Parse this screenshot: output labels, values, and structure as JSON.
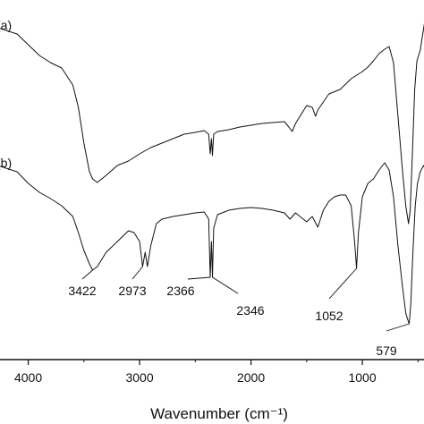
{
  "chart_data": {
    "type": "line",
    "xlabel": "Wavenumber (cm⁻¹)",
    "ylabel": "",
    "xlim": [
      4350,
      350
    ],
    "x_reversed": true,
    "x_ticks": [
      4000,
      3000,
      2000,
      1000
    ],
    "y_axis_visible": false,
    "grid": false,
    "series": [
      {
        "name": "(a)",
        "points": [
          [
            4350,
            8
          ],
          [
            4100,
            18
          ],
          [
            4000,
            30
          ],
          [
            3900,
            42
          ],
          [
            3800,
            50
          ],
          [
            3700,
            56
          ],
          [
            3600,
            75
          ],
          [
            3550,
            100
          ],
          [
            3500,
            140
          ],
          [
            3450,
            172
          ],
          [
            3422,
            180
          ],
          [
            3380,
            184
          ],
          [
            3300,
            176
          ],
          [
            3200,
            165
          ],
          [
            3100,
            160
          ],
          [
            3000,
            152
          ],
          [
            2900,
            145
          ],
          [
            2800,
            140
          ],
          [
            2700,
            135
          ],
          [
            2600,
            130
          ],
          [
            2500,
            128
          ],
          [
            2420,
            126
          ],
          [
            2380,
            130
          ],
          [
            2366,
            152
          ],
          [
            2355,
            135
          ],
          [
            2346,
            154
          ],
          [
            2335,
            130
          ],
          [
            2300,
            127
          ],
          [
            2200,
            125
          ],
          [
            2100,
            122
          ],
          [
            2000,
            120
          ],
          [
            1900,
            118
          ],
          [
            1800,
            117
          ],
          [
            1700,
            116
          ],
          [
            1660,
            122
          ],
          [
            1630,
            127
          ],
          [
            1600,
            118
          ],
          [
            1500,
            98
          ],
          [
            1450,
            100
          ],
          [
            1420,
            110
          ],
          [
            1400,
            103
          ],
          [
            1300,
            85
          ],
          [
            1200,
            80
          ],
          [
            1100,
            68
          ],
          [
            1000,
            60
          ],
          [
            950,
            55
          ],
          [
            900,
            48
          ],
          [
            850,
            40
          ],
          [
            800,
            35
          ],
          [
            760,
            32
          ],
          [
            720,
            50
          ],
          [
            680,
            110
          ],
          [
            640,
            170
          ],
          [
            610,
            210
          ],
          [
            585,
            230
          ],
          [
            570,
            215
          ],
          [
            550,
            150
          ],
          [
            530,
            80
          ],
          [
            510,
            48
          ],
          [
            480,
            36
          ],
          [
            460,
            20
          ],
          [
            440,
            4
          ]
        ]
      },
      {
        "name": "(b)",
        "points": [
          [
            4350,
            162
          ],
          [
            4100,
            172
          ],
          [
            4000,
            185
          ],
          [
            3900,
            195
          ],
          [
            3800,
            202
          ],
          [
            3700,
            210
          ],
          [
            3600,
            222
          ],
          [
            3550,
            240
          ],
          [
            3500,
            260
          ],
          [
            3450,
            275
          ],
          [
            3422,
            282
          ],
          [
            3380,
            278
          ],
          [
            3300,
            262
          ],
          [
            3200,
            250
          ],
          [
            3100,
            238
          ],
          [
            3050,
            240
          ],
          [
            3000,
            250
          ],
          [
            2973,
            278
          ],
          [
            2950,
            262
          ],
          [
            2930,
            278
          ],
          [
            2900,
            255
          ],
          [
            2850,
            230
          ],
          [
            2800,
            225
          ],
          [
            2700,
            222
          ],
          [
            2600,
            220
          ],
          [
            2500,
            218
          ],
          [
            2420,
            217
          ],
          [
            2380,
            225
          ],
          [
            2366,
            290
          ],
          [
            2355,
            250
          ],
          [
            2346,
            290
          ],
          [
            2335,
            235
          ],
          [
            2300,
            220
          ],
          [
            2200,
            215
          ],
          [
            2100,
            213
          ],
          [
            2000,
            212
          ],
          [
            1900,
            213
          ],
          [
            1800,
            215
          ],
          [
            1700,
            218
          ],
          [
            1650,
            225
          ],
          [
            1600,
            218
          ],
          [
            1500,
            228
          ],
          [
            1450,
            222
          ],
          [
            1400,
            234
          ],
          [
            1350,
            215
          ],
          [
            1300,
            205
          ],
          [
            1250,
            200
          ],
          [
            1200,
            198
          ],
          [
            1150,
            198
          ],
          [
            1100,
            210
          ],
          [
            1070,
            250
          ],
          [
            1052,
            280
          ],
          [
            1035,
            240
          ],
          [
            1000,
            200
          ],
          [
            950,
            185
          ],
          [
            900,
            180
          ],
          [
            850,
            170
          ],
          [
            800,
            162
          ],
          [
            760,
            170
          ],
          [
            720,
            200
          ],
          [
            680,
            255
          ],
          [
            640,
            300
          ],
          [
            610,
            330
          ],
          [
            585,
            340
          ],
          [
            579,
            342
          ],
          [
            565,
            320
          ],
          [
            545,
            260
          ],
          [
            525,
            210
          ],
          [
            505,
            185
          ],
          [
            480,
            172
          ],
          [
            450,
            165
          ],
          [
            430,
            170
          ]
        ]
      }
    ],
    "annotations": [
      {
        "text": "3422",
        "x": 3422
      },
      {
        "text": "2973",
        "x": 2973
      },
      {
        "text": "2366",
        "x": 2366
      },
      {
        "text": "2346",
        "x": 2346
      },
      {
        "text": "1052",
        "x": 1052
      },
      {
        "text": "579",
        "x": 579
      }
    ]
  }
}
